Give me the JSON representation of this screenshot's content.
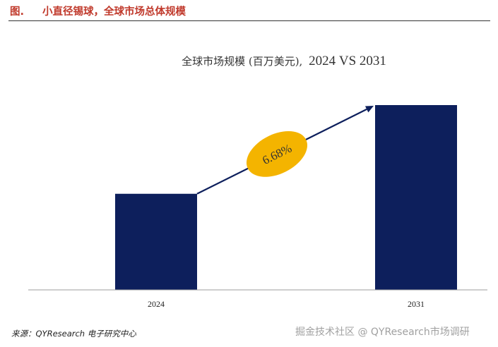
{
  "header": {
    "label": "图.",
    "title": "小直径锡球，全球市场总体规模"
  },
  "chart_data": {
    "type": "bar",
    "title_cn": "全球市场规模 (百万美元),",
    "title_en": "2024 VS 2031",
    "categories": [
      "2024",
      "2031"
    ],
    "values": [
      52,
      100
    ],
    "ylim": [
      0,
      100
    ],
    "value_note": "relative bar heights (no y-axis shown)",
    "growth_label": "6.68%",
    "xlabel": "",
    "ylabel": "",
    "grid": false,
    "colors": {
      "bar": "#0d1f5c",
      "arrow": "#0d1f5c",
      "badge": "#f4b400",
      "axis": "#9e9e9e"
    }
  },
  "footer": {
    "source": "来源：QYResearch 电子研究中心",
    "watermark": "掘金技术社区 @ QYResearch市场调研"
  }
}
